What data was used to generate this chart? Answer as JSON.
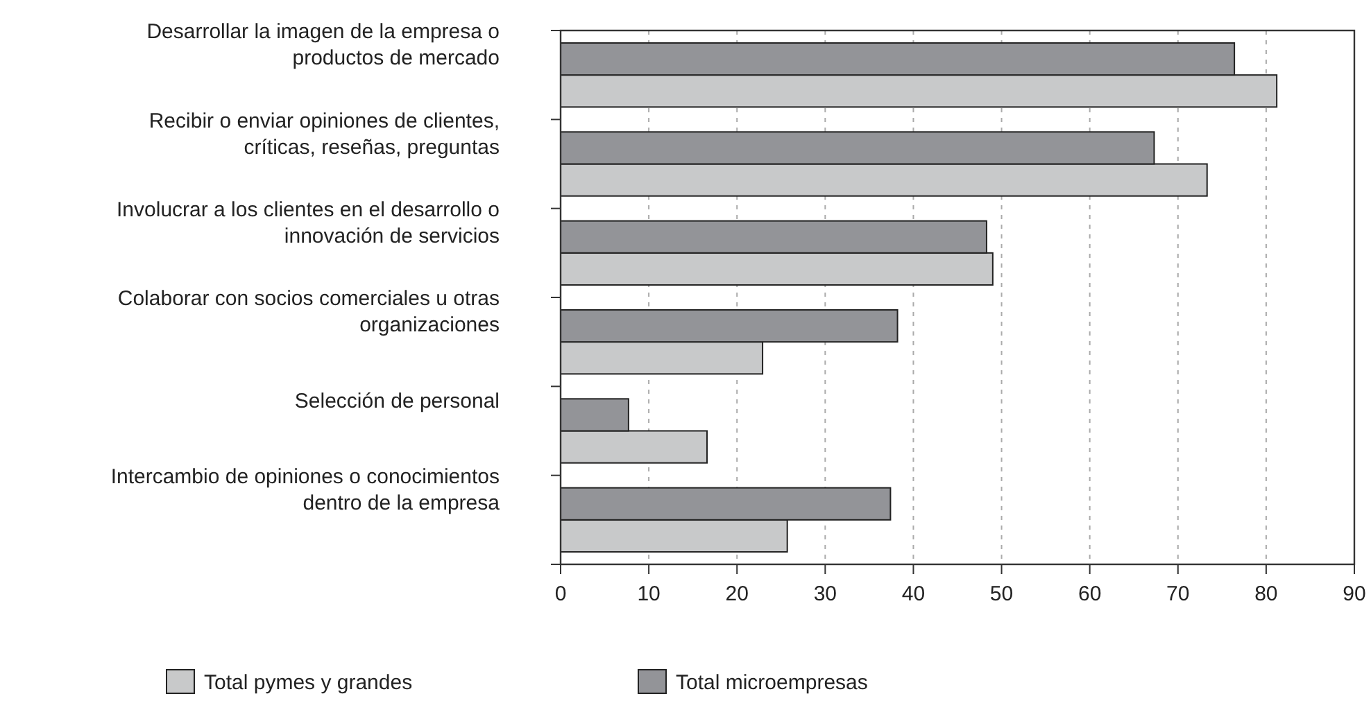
{
  "chart_data": {
    "type": "bar",
    "orientation": "horizontal",
    "categories": [
      "Desarrollar la imagen de la empresa o\nproductos de mercado",
      "Recibir o enviar opiniones de clientes,\ncríticas, reseñas, preguntas",
      "Involucrar a los clientes en el desarrollo o\ninnovación de servicios",
      "Colaborar con socios comerciales u otras\norganizaciones",
      "Selección de personal",
      "Intercambio de opiniones o conocimientos\ndentro de la empresa"
    ],
    "series": [
      {
        "name": "Total pymes y grandes",
        "color": "#c8c9ca",
        "values": [
          81.2,
          73.3,
          49.0,
          22.9,
          16.6,
          25.7
        ]
      },
      {
        "name": "Total microempresas",
        "color": "#939498",
        "values": [
          76.4,
          67.3,
          48.3,
          38.2,
          7.7,
          37.4
        ]
      }
    ],
    "xlim": [
      0,
      90
    ],
    "xticks": [
      0,
      10,
      20,
      30,
      40,
      50,
      60,
      70,
      80,
      90
    ],
    "grid": "x",
    "legend": "bottom"
  }
}
